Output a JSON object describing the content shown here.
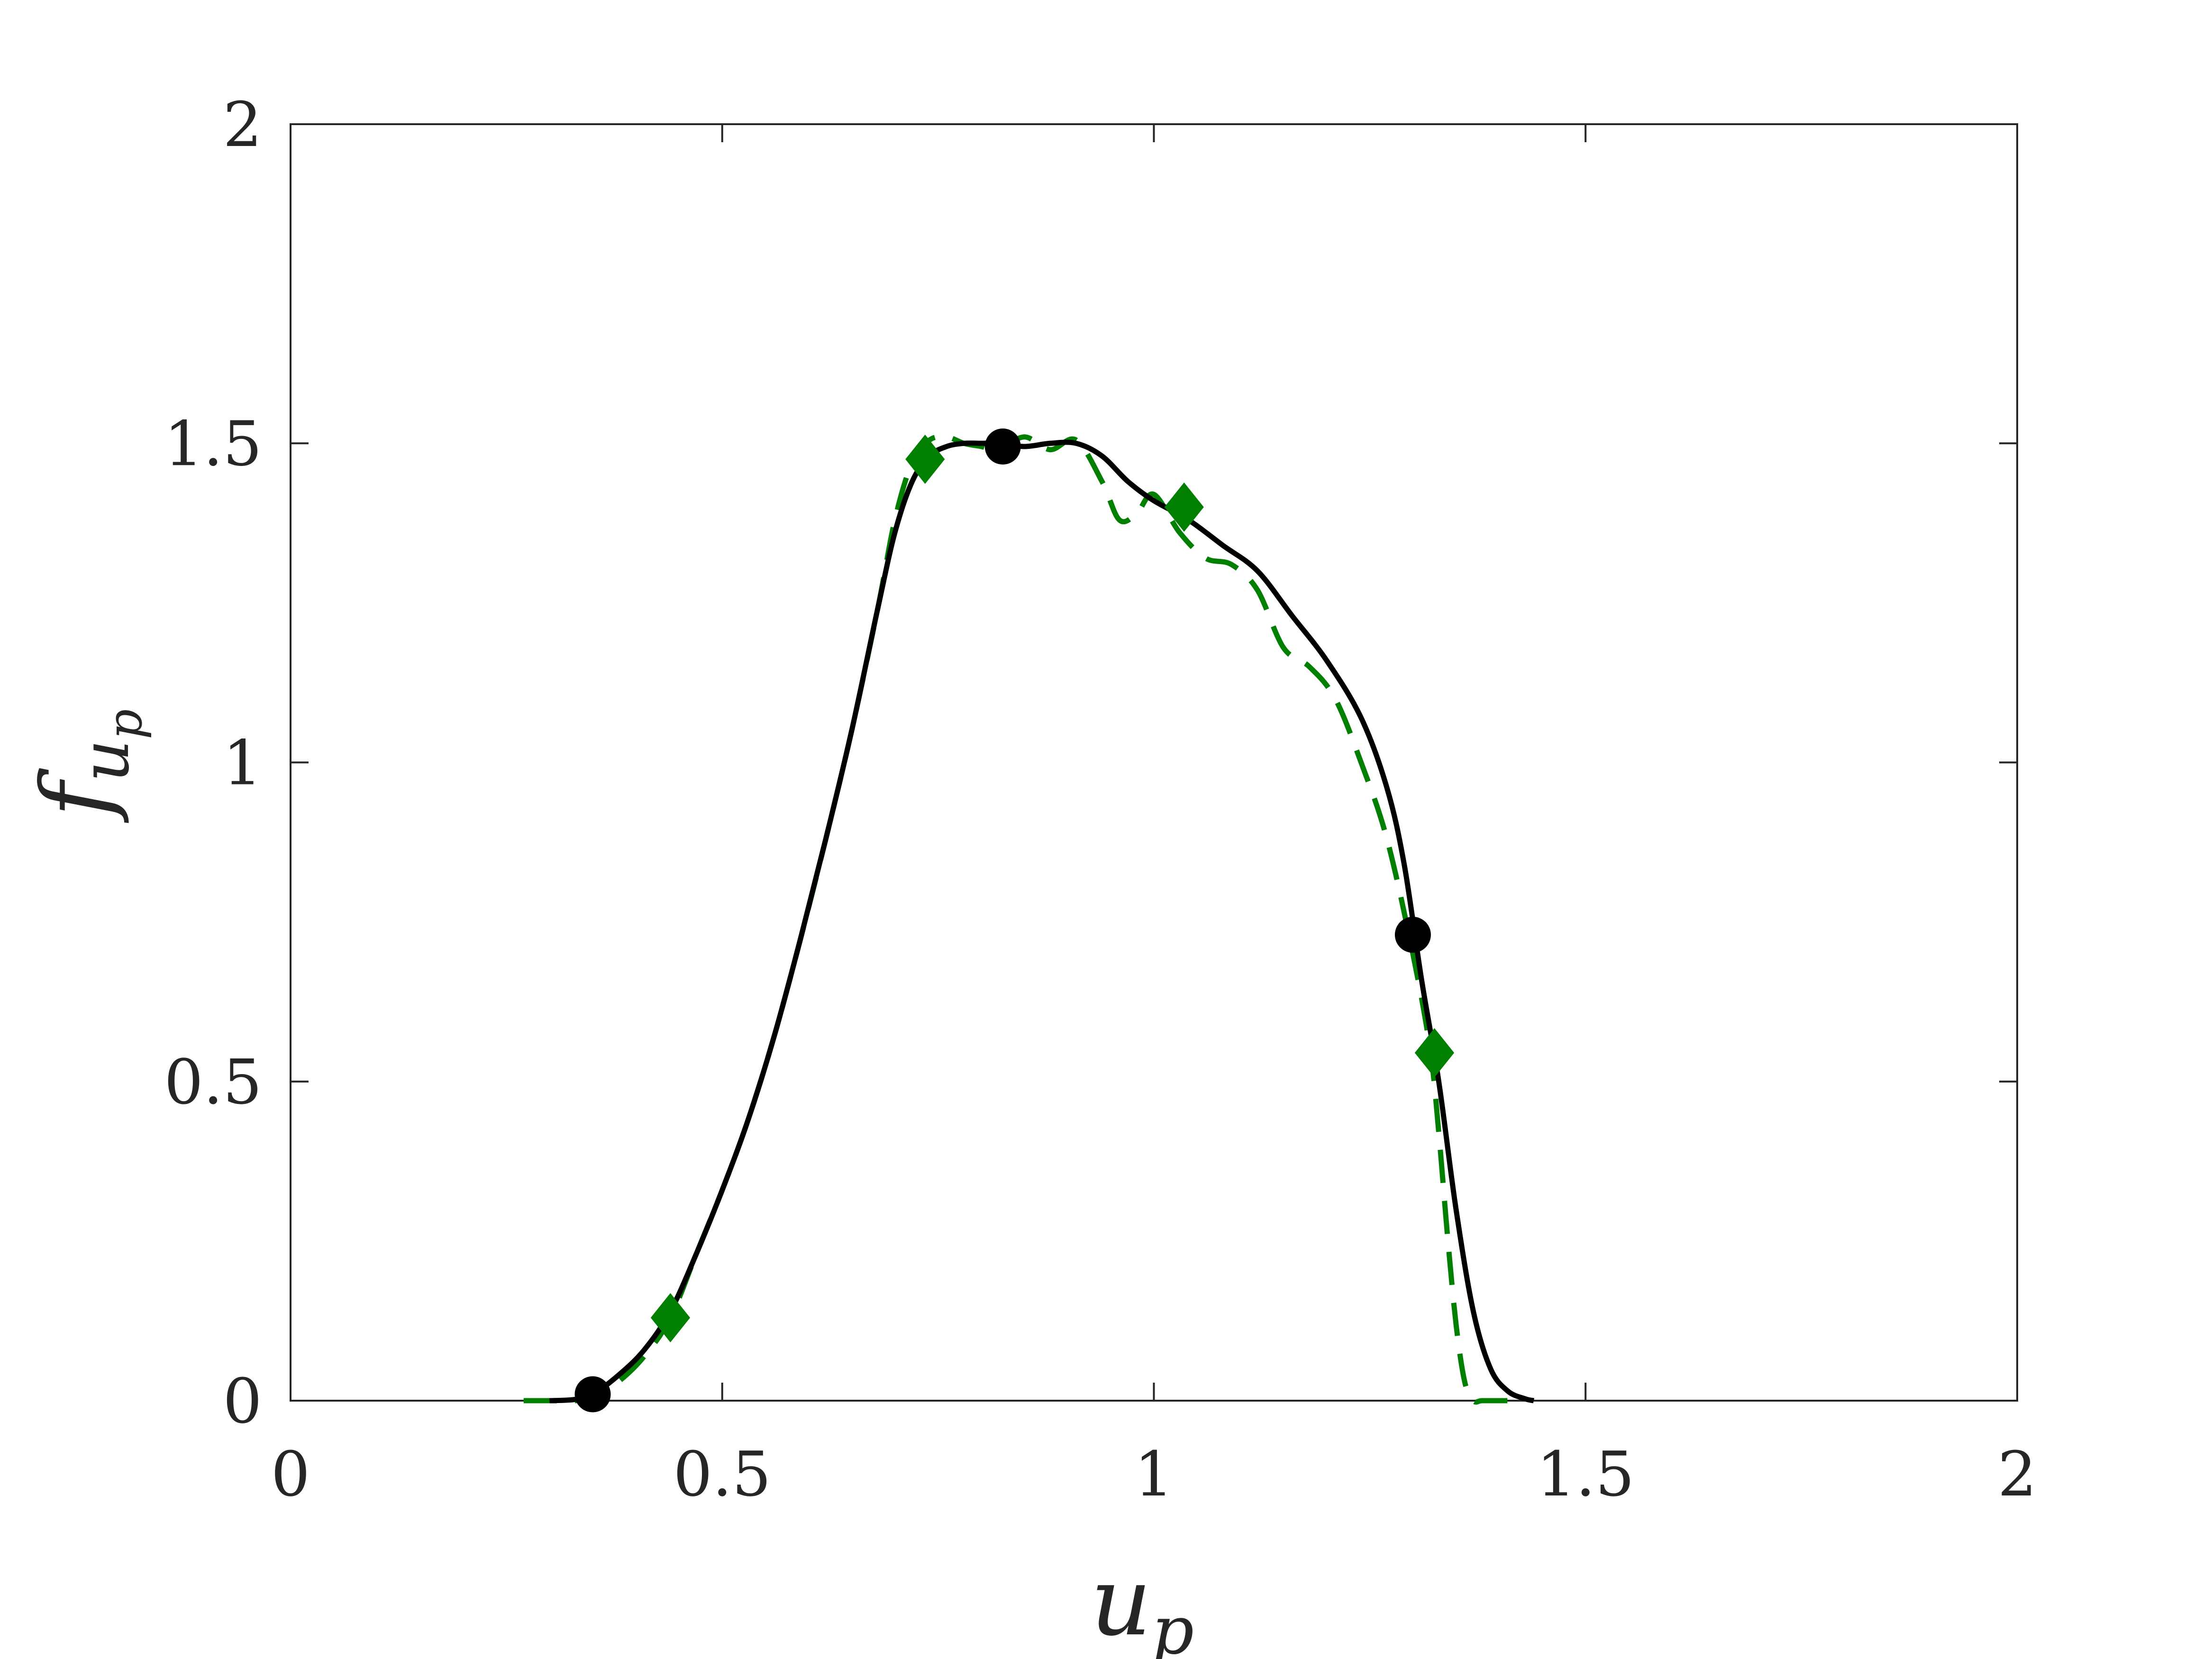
{
  "chart_data": {
    "type": "line",
    "title": "",
    "xlabel": "u",
    "xlabel_sub": "p",
    "ylabel": "f",
    "ylabel_sub_base": "u",
    "ylabel_sub_sub": "p",
    "xlim": [
      0,
      2
    ],
    "ylim": [
      0,
      2
    ],
    "xticks": [
      0,
      0.5,
      1,
      1.5,
      2
    ],
    "yticks": [
      0,
      0.5,
      1,
      1.5,
      2
    ],
    "xtick_labels": [
      "0",
      "0.5",
      "1",
      "1.5",
      "2"
    ],
    "ytick_labels": [
      "0",
      "0.5",
      "1",
      "1.5",
      "2"
    ],
    "grid": false,
    "series": [
      {
        "style": "solid",
        "color": "#000000",
        "x": [
          0.3,
          0.33,
          0.35,
          0.38,
          0.41,
          0.44,
          0.47,
          0.5,
          0.53,
          0.56,
          0.59,
          0.62,
          0.65,
          0.68,
          0.7,
          0.72,
          0.74,
          0.76,
          0.78,
          0.8,
          0.82,
          0.85,
          0.88,
          0.91,
          0.94,
          0.97,
          1.0,
          1.04,
          1.08,
          1.12,
          1.16,
          1.2,
          1.24,
          1.27,
          1.29,
          1.31,
          1.33,
          1.35,
          1.37,
          1.39,
          1.41,
          1.43,
          1.44
        ],
        "y": [
          0.0,
          0.002,
          0.01,
          0.04,
          0.08,
          0.14,
          0.23,
          0.33,
          0.44,
          0.57,
          0.72,
          0.88,
          1.05,
          1.24,
          1.36,
          1.44,
          1.48,
          1.495,
          1.5,
          1.5,
          1.5,
          1.495,
          1.5,
          1.5,
          1.48,
          1.44,
          1.41,
          1.38,
          1.34,
          1.3,
          1.23,
          1.16,
          1.07,
          0.96,
          0.84,
          0.66,
          0.5,
          0.3,
          0.14,
          0.05,
          0.015,
          0.003,
          0.0
        ]
      },
      {
        "style": "dashed",
        "color": "#007f00",
        "x": [
          0.27,
          0.3,
          0.33,
          0.35,
          0.38,
          0.41,
          0.44,
          0.47,
          0.5,
          0.53,
          0.56,
          0.59,
          0.62,
          0.65,
          0.68,
          0.7,
          0.72,
          0.74,
          0.76,
          0.78,
          0.8,
          0.82,
          0.85,
          0.88,
          0.91,
          0.94,
          0.96,
          0.98,
          1.0,
          1.03,
          1.06,
          1.09,
          1.12,
          1.15,
          1.18,
          1.21,
          1.24,
          1.27,
          1.3,
          1.32,
          1.33,
          1.34,
          1.35,
          1.36,
          1.37,
          1.38,
          1.4,
          1.43
        ],
        "y": [
          0.0,
          0.0,
          0.0,
          0.005,
          0.03,
          0.07,
          0.13,
          0.23,
          0.33,
          0.44,
          0.57,
          0.72,
          0.88,
          1.05,
          1.24,
          1.38,
          1.47,
          1.505,
          1.51,
          1.5,
          1.495,
          1.49,
          1.51,
          1.49,
          1.505,
          1.44,
          1.38,
          1.39,
          1.42,
          1.36,
          1.32,
          1.31,
          1.27,
          1.18,
          1.15,
          1.1,
          1.0,
          0.88,
          0.7,
          0.55,
          0.42,
          0.26,
          0.12,
          0.03,
          0.0,
          0.0,
          0.0,
          0.0
        ]
      }
    ],
    "markers": [
      {
        "series": 0,
        "shape": "circle",
        "color": "#000000",
        "points": [
          [
            0.35,
            0.01
          ],
          [
            0.825,
            1.495
          ],
          [
            1.3,
            0.73
          ]
        ]
      },
      {
        "series": 1,
        "shape": "diamond",
        "color": "#007f00",
        "points": [
          [
            0.44,
            0.13
          ],
          [
            0.735,
            1.475
          ],
          [
            1.035,
            1.4
          ],
          [
            1.325,
            0.545
          ]
        ]
      }
    ]
  }
}
